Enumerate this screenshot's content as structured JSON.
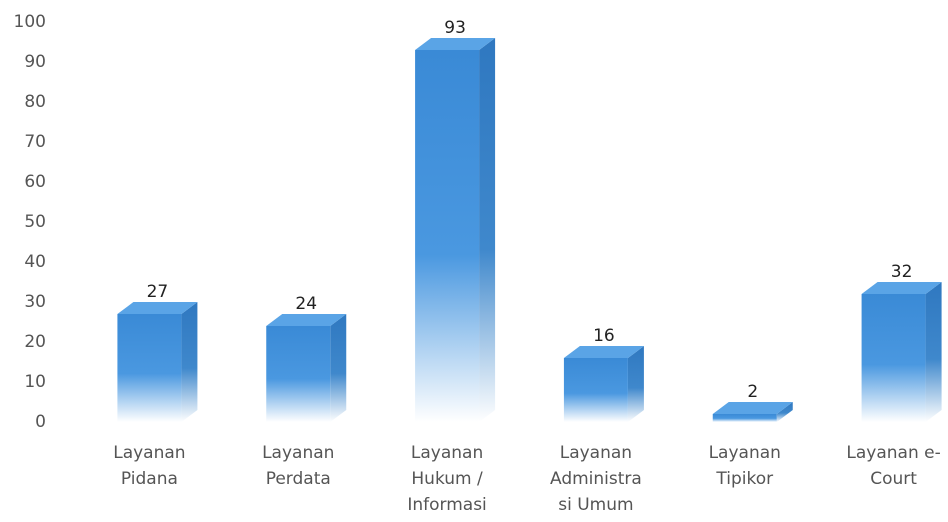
{
  "chart_data": {
    "type": "bar3d",
    "categories": [
      "Layanan Pidana",
      "Layanan Perdata",
      "Layanan Hukum / Informasi",
      "Layanan Administrasi Umum",
      "Layanan Tipikor",
      "Layanan e-Court"
    ],
    "values": [
      27,
      24,
      93,
      16,
      2,
      32
    ],
    "color": "#3a8ad6",
    "ylim": [
      0,
      100
    ],
    "yticks": [
      0,
      10,
      20,
      30,
      40,
      50,
      60,
      70,
      80,
      90,
      100
    ],
    "grid": false
  }
}
